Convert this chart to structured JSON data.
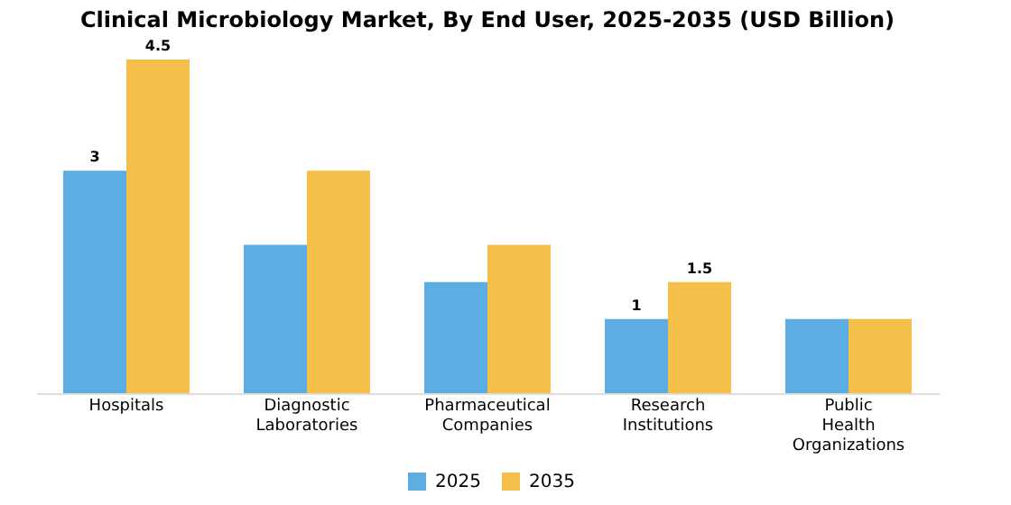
{
  "chart_data": {
    "type": "bar",
    "title": "Clinical Microbiology Market, By End User, 2025-2035 (USD Billion)",
    "categories": [
      "Hospitals",
      "Diagnostic Laboratories",
      "Pharmaceutical Companies",
      "Research Institutions",
      "Public Health Organizations"
    ],
    "series": [
      {
        "name": "2025",
        "color": "#5dade2",
        "values": [
          3,
          2,
          1.5,
          1,
          1
        ],
        "value_labels": [
          "3",
          null,
          null,
          "1",
          null
        ]
      },
      {
        "name": "2035",
        "color": "#f5c04a",
        "values": [
          4.5,
          3,
          2,
          1.5,
          1
        ],
        "value_labels": [
          "4.5",
          null,
          null,
          "1.5",
          null
        ]
      }
    ],
    "legend": "bottom",
    "grid": false
  }
}
